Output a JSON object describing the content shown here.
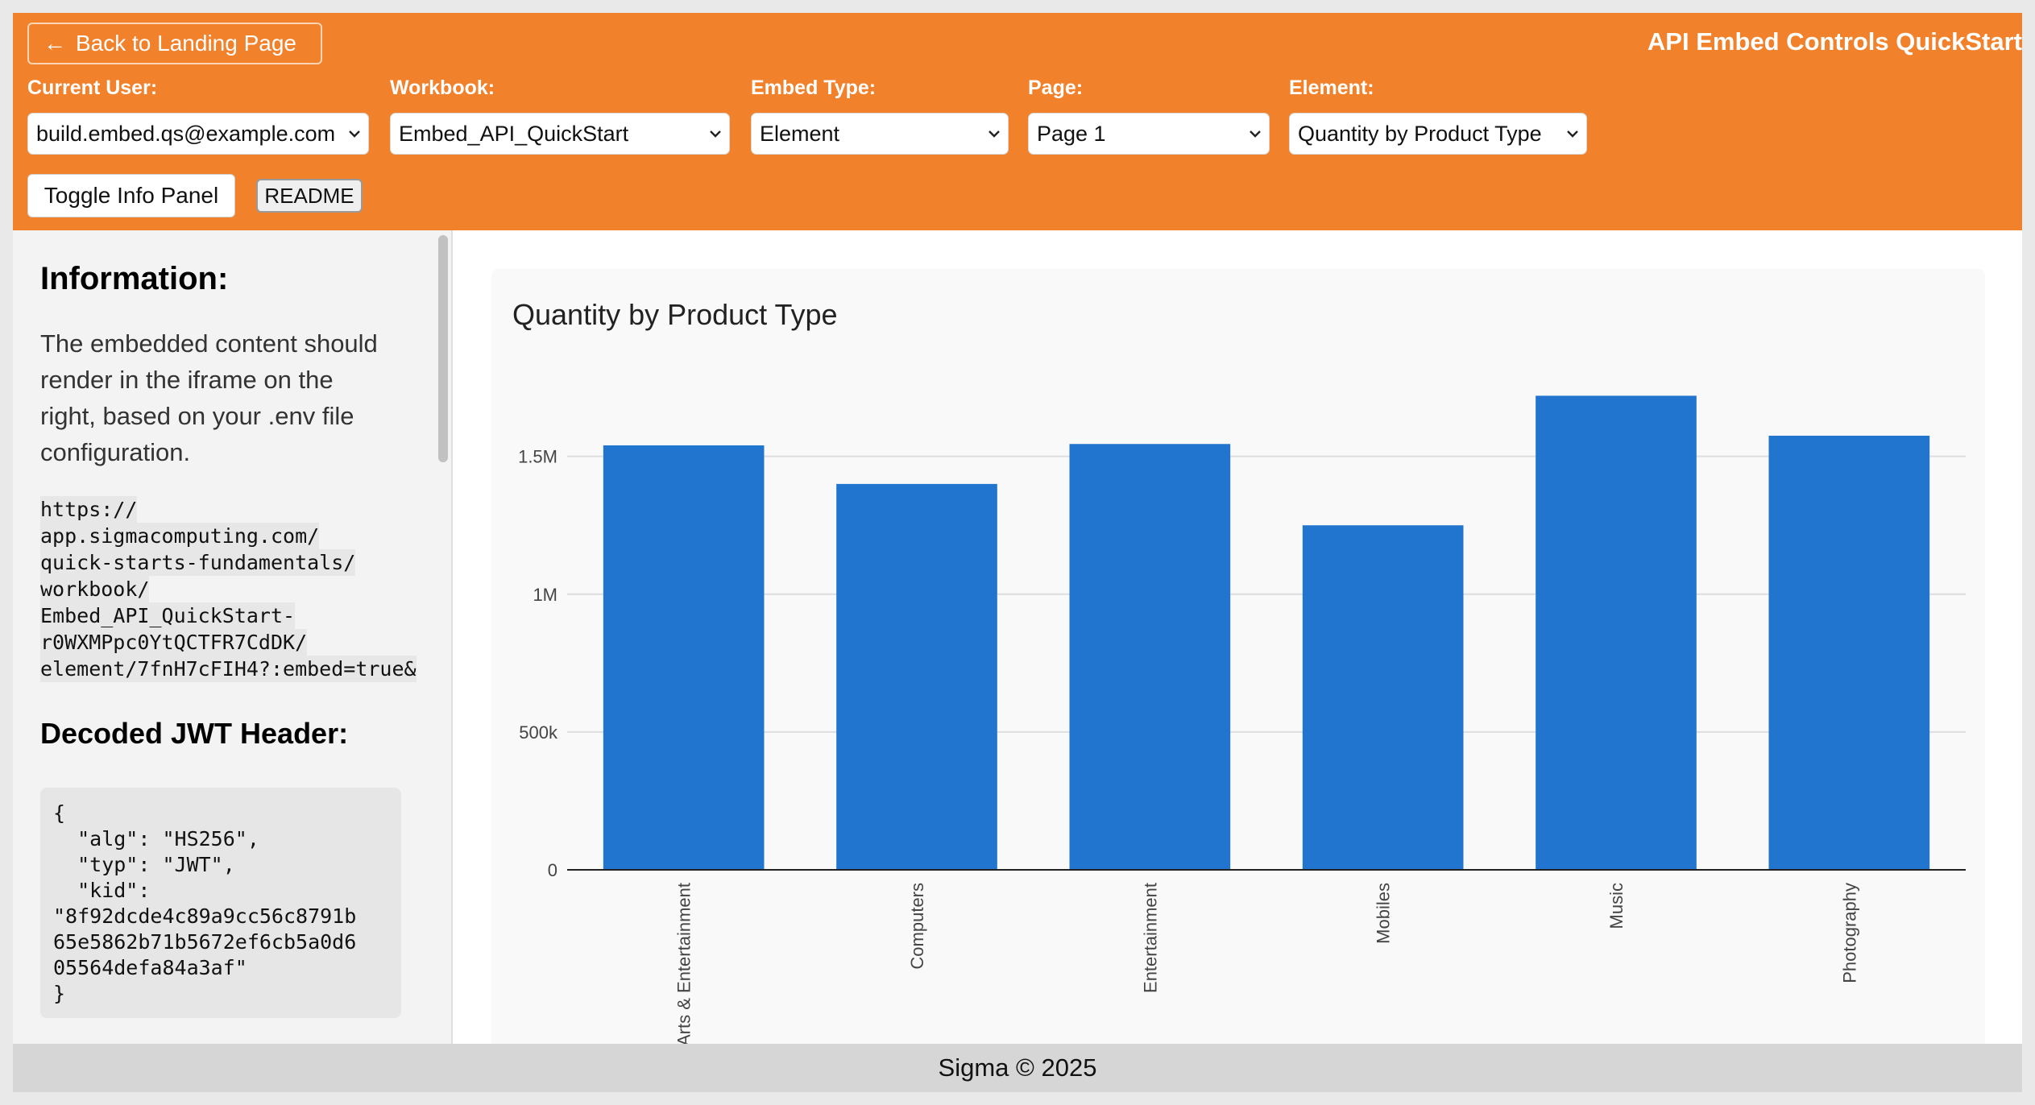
{
  "header": {
    "back_label": "Back to Landing Page",
    "title": "API Embed Controls QuickStart",
    "accent_color": "#f2812b",
    "controls": {
      "user": {
        "label": "Current User:",
        "value": "build.embed.qs@example.com"
      },
      "workbook": {
        "label": "Workbook:",
        "value": "Embed_API_QuickStart"
      },
      "embed_type": {
        "label": "Embed Type:",
        "value": "Element"
      },
      "page": {
        "label": "Page:",
        "value": "Page 1"
      },
      "element": {
        "label": "Element:",
        "value": "Quantity by Product Type"
      }
    },
    "toggle_label": "Toggle Info Panel",
    "readme_label": "README"
  },
  "info": {
    "heading": "Information:",
    "text": "The embedded content should render in the iframe on the right, based on your .env file configuration.",
    "url_lines": [
      "https://",
      "app.sigmacomputing.com/",
      "quick-starts-fundamentals/",
      "workbook/",
      "Embed_API_QuickStart-",
      "r0WXMPpc0YtQCTFR7CdDK/",
      "element/7fnH7cFIH4?:embed=true&"
    ],
    "jwt_heading": "Decoded JWT Header:",
    "jwt_lines": [
      "{",
      "  \"alg\": \"HS256\",",
      "  \"typ\": \"JWT\",",
      "  \"kid\":",
      "\"8f92dcde4c89a9cc56c8791b",
      "65e5862b71b5672ef6cb5a0d6",
      "05564defa84a3af\"",
      "}"
    ]
  },
  "chart_data": {
    "type": "bar",
    "title": "Quantity by Product Type",
    "categories": [
      "Arts & Entertainment",
      "Computers",
      "Entertainment",
      "Mobiles",
      "Music",
      "Photography"
    ],
    "values": [
      1540000,
      1400000,
      1545000,
      1250000,
      1720000,
      1575000
    ],
    "ylim": [
      0,
      1800000
    ],
    "yticks": [
      0,
      500000,
      1000000,
      1500000
    ],
    "ytick_labels": [
      "0",
      "500k",
      "1M",
      "1.5M"
    ],
    "xlabel": "",
    "ylabel": "",
    "bar_color": "#2275cf",
    "grid": true
  },
  "footer": {
    "text": "Sigma © 2025"
  }
}
